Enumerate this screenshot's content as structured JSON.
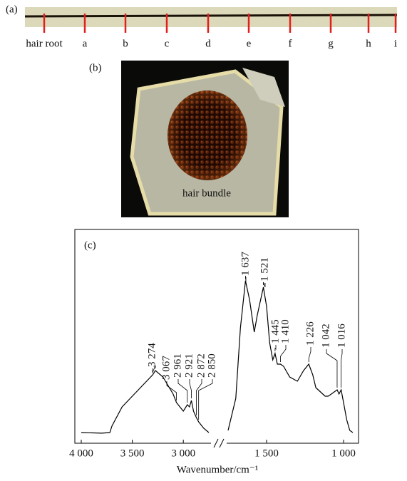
{
  "panel_a": {
    "label": "(a)",
    "markers": [
      "hair root",
      "a",
      "b",
      "c",
      "d",
      "e",
      "f",
      "g",
      "h",
      "i"
    ]
  },
  "panel_b": {
    "label": "(b)",
    "caption": "hair bundle"
  },
  "chart_data": {
    "type": "line",
    "panel_label": "(c)",
    "xlabel": "Wavenumber/cm⁻¹",
    "color": "#000000",
    "ylim": [
      0,
      1
    ],
    "segments": [
      {
        "xlim": [
          4000,
          2750
        ],
        "xticks": [
          {
            "value": 4000,
            "label": "4 000"
          },
          {
            "value": 3500,
            "label": "3 500"
          },
          {
            "value": 3000,
            "label": "3 000"
          }
        ],
        "x": [
          4000,
          3800,
          3720,
          3700,
          3600,
          3500,
          3400,
          3300,
          3274,
          3200,
          3100,
          3067,
          3000,
          2961,
          2940,
          2921,
          2900,
          2872,
          2850,
          2800,
          2750
        ],
        "values": [
          0.05,
          0.047,
          0.05,
          0.08,
          0.17,
          0.22,
          0.27,
          0.32,
          0.34,
          0.31,
          0.23,
          0.19,
          0.15,
          0.18,
          0.17,
          0.2,
          0.15,
          0.12,
          0.1,
          0.07,
          0.05
        ]
      },
      {
        "xlim": [
          1750,
          940
        ],
        "xticks": [
          {
            "value": 1500,
            "label": "1 500"
          },
          {
            "value": 1000,
            "label": "1 000"
          }
        ],
        "x": [
          1750,
          1700,
          1670,
          1637,
          1610,
          1580,
          1560,
          1521,
          1500,
          1480,
          1460,
          1445,
          1430,
          1410,
          1390,
          1350,
          1300,
          1260,
          1226,
          1200,
          1180,
          1150,
          1120,
          1100,
          1080,
          1042,
          1030,
          1016,
          1000,
          980,
          960,
          940
        ],
        "values": [
          0.06,
          0.21,
          0.54,
          0.76,
          0.67,
          0.52,
          0.6,
          0.73,
          0.64,
          0.47,
          0.39,
          0.42,
          0.37,
          0.37,
          0.36,
          0.31,
          0.29,
          0.34,
          0.37,
          0.32,
          0.26,
          0.24,
          0.22,
          0.22,
          0.23,
          0.25,
          0.23,
          0.25,
          0.19,
          0.11,
          0.06,
          0.05
        ]
      }
    ],
    "annotations": [
      {
        "value": 3274,
        "label": "3 274"
      },
      {
        "value": 3067,
        "label": "3 067"
      },
      {
        "value": 2961,
        "label": "2 961"
      },
      {
        "value": 2921,
        "label": "2 921"
      },
      {
        "value": 2872,
        "label": "2 872"
      },
      {
        "value": 2850,
        "label": "2 850"
      },
      {
        "value": 1637,
        "label": "1 637"
      },
      {
        "value": 1521,
        "label": "1 521"
      },
      {
        "value": 1445,
        "label": "1 445"
      },
      {
        "value": 1410,
        "label": "1 410"
      },
      {
        "value": 1226,
        "label": "1 226"
      },
      {
        "value": 1042,
        "label": "1 042"
      },
      {
        "value": 1016,
        "label": "1 016"
      }
    ]
  }
}
